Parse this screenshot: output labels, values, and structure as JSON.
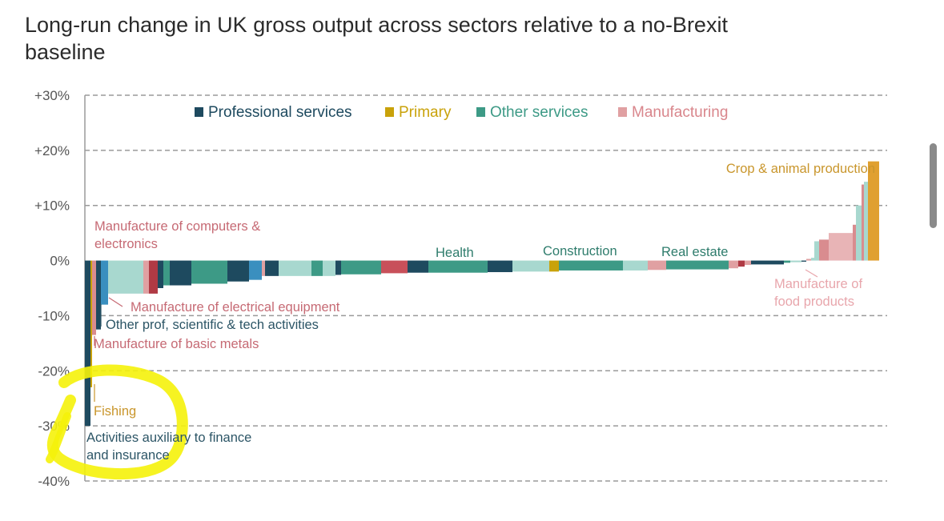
{
  "chart_data": {
    "type": "bar",
    "title": "Long-run change in UK gross output across sectors relative to a no-Brexit baseline",
    "xlabel": "",
    "ylabel": "",
    "ylim": [
      -40,
      30
    ],
    "yticks": [
      {
        "value": 30,
        "label": "+30%"
      },
      {
        "value": 20,
        "label": "+20%"
      },
      {
        "value": 10,
        "label": "+10%"
      },
      {
        "value": 0,
        "label": "0%"
      },
      {
        "value": -10,
        "label": "-10%"
      },
      {
        "value": -20,
        "label": "-20%"
      },
      {
        "value": -30,
        "label": "-30%"
      },
      {
        "value": -40,
        "label": "-40%"
      }
    ],
    "grid": true,
    "legend_position": "top",
    "legend": [
      {
        "name": "Professional services",
        "color": "#1e4a5f"
      },
      {
        "name": "Primary",
        "color": "#c9a20a"
      },
      {
        "name": "Other services",
        "color": "#3d9a86"
      },
      {
        "name": "Manufacturing",
        "color": "#e0a0a2"
      }
    ],
    "group_text_colors": {
      "prof": "#2c5566",
      "prim": "#c9962c",
      "oth": "#2e7c6c",
      "man": "#c66a74"
    },
    "bars": [
      {
        "g": "prof",
        "v": -30.0,
        "w": 7,
        "c": "#1e4a5f"
      },
      {
        "g": "prim",
        "v": -23.0,
        "w": 2,
        "c": "#c9a20a"
      },
      {
        "g": "man",
        "v": -13.5,
        "w": 5,
        "c": "#d98c8f"
      },
      {
        "g": "prof",
        "v": -12.5,
        "w": 6,
        "c": "#1e4a5f"
      },
      {
        "g": "prof",
        "v": -8.0,
        "w": 9,
        "c": "#3a8fbf"
      },
      {
        "g": "oth",
        "v": -6.0,
        "w": 4,
        "c": "#a8d8cf"
      },
      {
        "g": "man",
        "v": -6.0,
        "w": 40,
        "c": "#a8d8cf"
      },
      {
        "g": "man",
        "v": -6.0,
        "w": 7,
        "c": "#e0a0a2"
      },
      {
        "g": "man",
        "v": -6.0,
        "w": 11,
        "c": "#b03a44"
      },
      {
        "g": "oth",
        "v": -5.0,
        "w": 7,
        "c": "#1e4a5f"
      },
      {
        "g": "oth",
        "v": -4.5,
        "w": 8,
        "c": "#3d9a86"
      },
      {
        "g": "prof",
        "v": -4.5,
        "w": 27,
        "c": "#1e4a5f"
      },
      {
        "g": "oth",
        "v": -4.2,
        "w": 45,
        "c": "#3d9a86"
      },
      {
        "g": "prof",
        "v": -3.8,
        "w": 27,
        "c": "#1e4a5f"
      },
      {
        "g": "prof",
        "v": -3.5,
        "w": 16,
        "c": "#3a8fbf"
      },
      {
        "g": "man",
        "v": -2.8,
        "w": 4,
        "c": "#e0a0a2"
      },
      {
        "g": "prof",
        "v": -2.8,
        "w": 17,
        "c": "#1e4a5f"
      },
      {
        "g": "oth",
        "v": -2.8,
        "w": 41,
        "c": "#a8d8cf"
      },
      {
        "g": "oth",
        "v": -2.8,
        "w": 14,
        "c": "#3d9a86"
      },
      {
        "g": "oth",
        "v": -2.8,
        "w": 16,
        "c": "#a8d8cf"
      },
      {
        "g": "prof",
        "v": -2.6,
        "w": 7,
        "c": "#1e4a5f"
      },
      {
        "g": "oth",
        "v": -2.5,
        "w": 50,
        "c": "#3d9a86"
      },
      {
        "g": "man",
        "v": -2.3,
        "w": 33,
        "c": "#c8505a"
      },
      {
        "g": "prof",
        "v": -2.2,
        "w": 26,
        "c": "#1e4a5f"
      },
      {
        "g": "oth",
        "v": -2.2,
        "w": 74,
        "c": "#3d9a86"
      },
      {
        "g": "prof",
        "v": -2.1,
        "w": 31,
        "c": "#1e4a5f"
      },
      {
        "g": "oth",
        "v": -2.0,
        "w": 46,
        "c": "#a8d8cf"
      },
      {
        "g": "prim",
        "v": -2.0,
        "w": 12,
        "c": "#c9a20a"
      },
      {
        "g": "oth",
        "v": -1.8,
        "w": 80,
        "c": "#3d9a86"
      },
      {
        "g": "oth",
        "v": -1.8,
        "w": 31,
        "c": "#a8d8cf"
      },
      {
        "g": "man",
        "v": -1.7,
        "w": 6,
        "c": "#e0a0a2"
      },
      {
        "g": "man",
        "v": -1.7,
        "w": 17,
        "c": "#e0a0a2"
      },
      {
        "g": "oth",
        "v": -1.6,
        "w": 78,
        "c": "#3d9a86"
      },
      {
        "g": "man",
        "v": -1.4,
        "w": 12,
        "c": "#e0a0a2"
      },
      {
        "g": "man",
        "v": -1.1,
        "w": 8,
        "c": "#b03a44"
      },
      {
        "g": "man",
        "v": -0.8,
        "w": 8,
        "c": "#e0a0a2"
      },
      {
        "g": "prof",
        "v": -0.7,
        "w": 41,
        "c": "#1e4a5f"
      },
      {
        "g": "oth",
        "v": -0.4,
        "w": 8,
        "c": "#3d9a86"
      },
      {
        "g": "oth",
        "v": -0.3,
        "w": 14,
        "c": "#a8d8cf"
      },
      {
        "g": "prof",
        "v": -0.2,
        "w": 6,
        "c": "#1e4a5f"
      },
      {
        "g": "man",
        "v": 0.3,
        "w": 6,
        "c": "#e0a0a2"
      },
      {
        "g": "oth",
        "v": 0.5,
        "w": 4,
        "c": "#a8d8cf"
      },
      {
        "g": "oth",
        "v": 3.5,
        "w": 6,
        "c": "#a8d8cf"
      },
      {
        "g": "man",
        "v": 3.8,
        "w": 12,
        "c": "#d98c8f"
      },
      {
        "g": "man",
        "v": 5.0,
        "w": 30,
        "c": "#e8b4b6"
      },
      {
        "g": "man",
        "v": 6.5,
        "w": 4,
        "c": "#d98c8f"
      },
      {
        "g": "oth",
        "v": 10.0,
        "w": 7,
        "c": "#a8d8cf"
      },
      {
        "g": "man",
        "v": 13.8,
        "w": 3,
        "c": "#d98c8f"
      },
      {
        "g": "oth",
        "v": 14.3,
        "w": 5,
        "c": "#a8d8cf"
      },
      {
        "g": "prim",
        "v": 18.0,
        "w": 14,
        "c": "#e0a030"
      }
    ],
    "annotations": [
      {
        "lines": [
          "Manufacture of computers &",
          "electronics"
        ],
        "g": "man"
      },
      {
        "lines": [
          "Manufacture of electrical equipment"
        ],
        "g": "man"
      },
      {
        "lines": [
          "Other prof, scientific & tech activities"
        ],
        "g": "prof"
      },
      {
        "lines": [
          "Manufacture of basic metals"
        ],
        "g": "man"
      },
      {
        "lines": [
          "Fishing"
        ],
        "g": "prim"
      },
      {
        "lines": [
          "Activities auxiliary to finance",
          "and insurance"
        ],
        "g": "prof"
      },
      {
        "lines": [
          "Health"
        ],
        "g": "oth"
      },
      {
        "lines": [
          "Construction"
        ],
        "g": "oth"
      },
      {
        "lines": [
          "Real estate"
        ],
        "g": "oth"
      },
      {
        "lines": [
          "Crop & animal production"
        ],
        "g": "prim"
      },
      {
        "lines": [
          "Manufacture of",
          "food products"
        ],
        "g": "man"
      }
    ],
    "highlight": {
      "color": "#f5f20a"
    }
  }
}
